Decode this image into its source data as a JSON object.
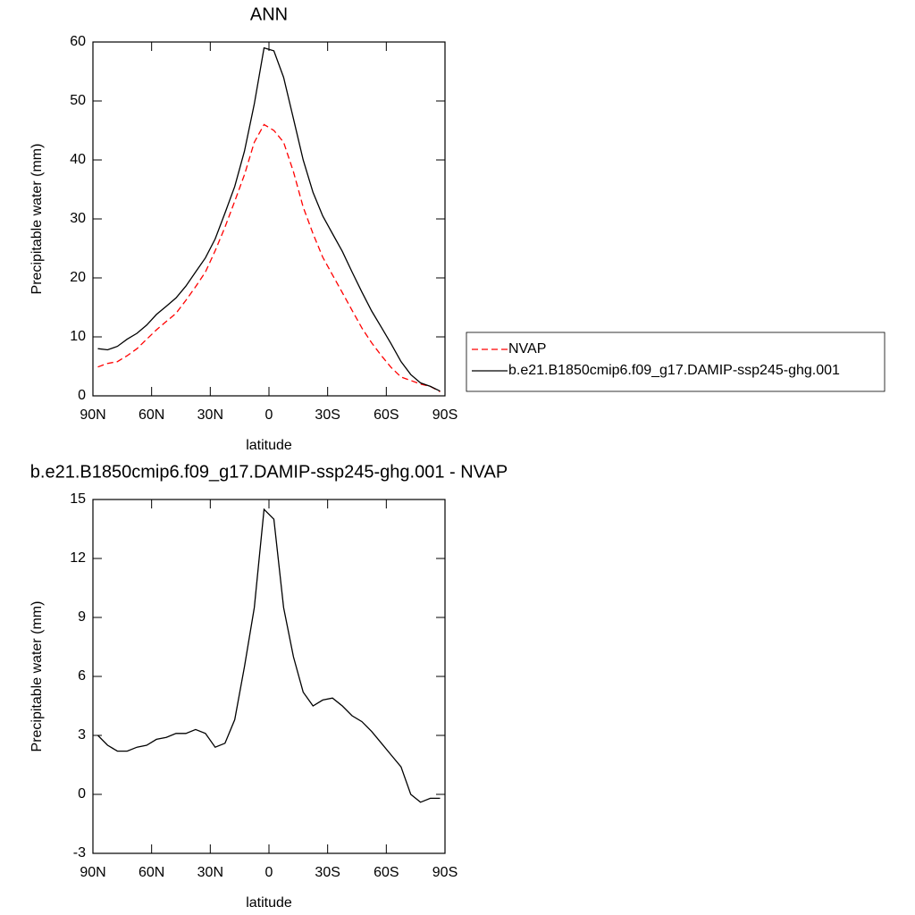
{
  "chart_data": [
    {
      "type": "line",
      "title": "ANN",
      "xlabel": "latitude",
      "ylabel": "Precipitable water (mm)",
      "x": [
        87.5,
        82.5,
        77.5,
        72.5,
        67.5,
        62.5,
        57.5,
        52.5,
        47.5,
        42.5,
        37.5,
        32.5,
        27.5,
        22.5,
        17.5,
        12.5,
        7.5,
        2.5,
        -2.5,
        -7.5,
        -12.5,
        -17.5,
        -22.5,
        -27.5,
        -32.5,
        -37.5,
        -42.5,
        -47.5,
        -52.5,
        -57.5,
        -62.5,
        -67.5,
        -72.5,
        -77.5,
        -82.5,
        -87.5
      ],
      "xlim": [
        90,
        -90
      ],
      "xticks": [
        {
          "value": 90,
          "label": "90N"
        },
        {
          "value": 60,
          "label": "60N"
        },
        {
          "value": 30,
          "label": "30N"
        },
        0,
        {
          "value": -30,
          "label": "30S"
        },
        {
          "value": -60,
          "label": "60S"
        },
        {
          "value": -90,
          "label": "90S"
        }
      ],
      "ylim": [
        0,
        60
      ],
      "yticks": [
        0,
        10,
        20,
        30,
        40,
        50,
        60
      ],
      "legend": "right",
      "series": [
        {
          "name": "NVAP",
          "color": "#ff0000",
          "dash": true,
          "values": [
            4.9,
            5.5,
            5.8,
            6.8,
            8.0,
            9.6,
            11.2,
            12.6,
            14.0,
            16.2,
            18.5,
            21.0,
            24.6,
            28.6,
            33.0,
            37.5,
            43.0,
            46.0,
            45.0,
            43.0,
            38.0,
            32.0,
            27.5,
            23.5,
            20.5,
            17.5,
            14.5,
            11.5,
            9.0,
            6.8,
            4.8,
            3.2,
            2.6,
            2.0,
            1.6,
            0.7
          ]
        },
        {
          "name": "b.e21.B1850cmip6.f09_g17.DAMIP-ssp245-ghg.001",
          "color": "#000000",
          "dash": false,
          "values": [
            8.0,
            7.8,
            8.4,
            9.6,
            10.6,
            12.0,
            13.8,
            15.2,
            16.6,
            18.6,
            21.0,
            23.4,
            26.6,
            31.0,
            35.5,
            41.5,
            49.5,
            59.0,
            58.5,
            54.0,
            47.0,
            40.0,
            34.5,
            30.5,
            27.5,
            24.5,
            21.0,
            17.6,
            14.4,
            11.6,
            8.8,
            5.8,
            3.6,
            2.2,
            1.6,
            0.8
          ]
        }
      ]
    },
    {
      "type": "line",
      "title": "b.e21.B1850cmip6.f09_g17.DAMIP-ssp245-ghg.001 - NVAP",
      "xlabel": "latitude",
      "ylabel": "Precipitable water (mm)",
      "x": [
        87.5,
        82.5,
        77.5,
        72.5,
        67.5,
        62.5,
        57.5,
        52.5,
        47.5,
        42.5,
        37.5,
        32.5,
        27.5,
        22.5,
        17.5,
        12.5,
        7.5,
        2.5,
        -2.5,
        -7.5,
        -12.5,
        -17.5,
        -22.5,
        -27.5,
        -32.5,
        -37.5,
        -42.5,
        -47.5,
        -52.5,
        -57.5,
        -62.5,
        -67.5,
        -72.5,
        -77.5,
        -82.5,
        -87.5
      ],
      "xlim": [
        90,
        -90
      ],
      "xticks": [
        {
          "value": 90,
          "label": "90N"
        },
        {
          "value": 60,
          "label": "60N"
        },
        {
          "value": 30,
          "label": "30N"
        },
        0,
        {
          "value": -30,
          "label": "30S"
        },
        {
          "value": -60,
          "label": "60S"
        },
        {
          "value": -90,
          "label": "90S"
        }
      ],
      "ylim": [
        -3,
        15
      ],
      "yticks": [
        -3,
        0,
        3,
        6,
        9,
        12,
        15
      ],
      "series": [
        {
          "color": "#000000",
          "dash": false,
          "values": [
            3.0,
            2.5,
            2.2,
            2.2,
            2.4,
            2.5,
            2.8,
            2.9,
            3.1,
            3.1,
            3.3,
            3.1,
            2.4,
            2.6,
            3.8,
            6.5,
            9.5,
            14.5,
            14.0,
            9.5,
            7.0,
            5.2,
            4.5,
            4.8,
            4.9,
            4.5,
            4.0,
            3.7,
            3.2,
            2.6,
            2.0,
            1.4,
            0.0,
            -0.4,
            -0.2,
            -0.2
          ]
        }
      ]
    }
  ]
}
